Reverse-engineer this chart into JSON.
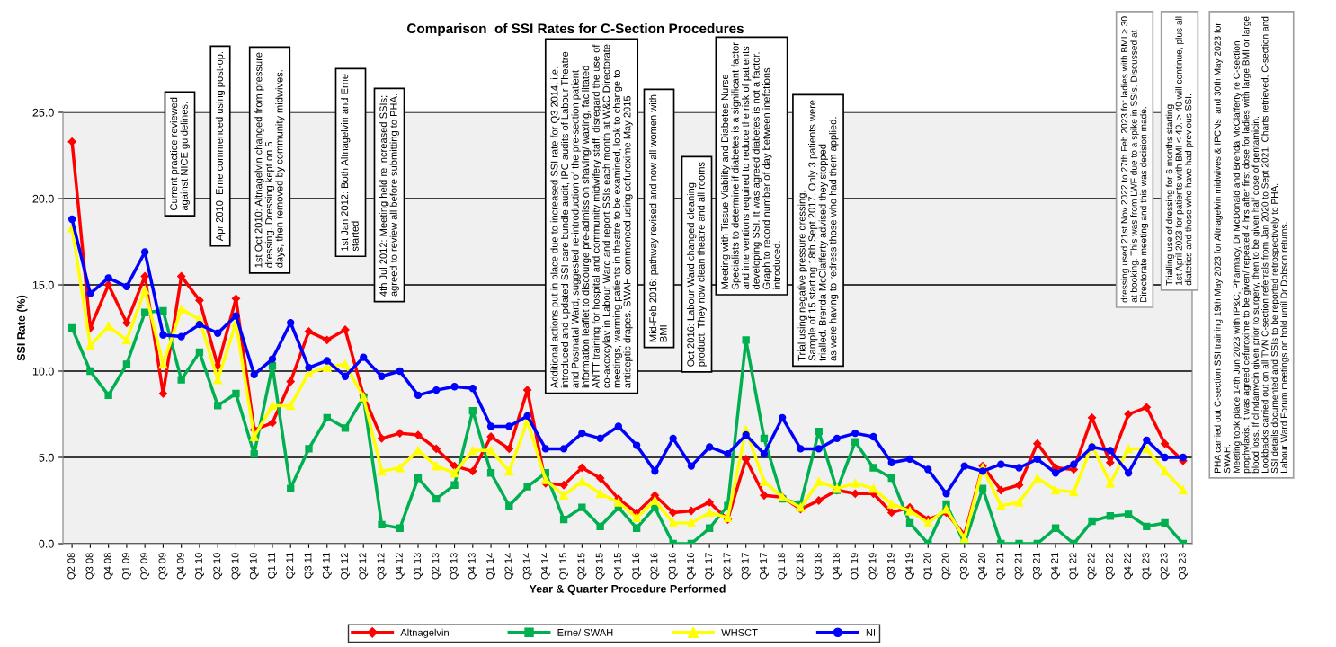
{
  "chart_data": {
    "type": "line",
    "title": "Comparison  of SSI Rates for C-Section Procedures",
    "xlabel": "Year & Quarter Procedure Performed",
    "ylabel": "SSI Rate (%)",
    "categories": [
      "Q2 08",
      "Q3 08",
      "Q4 08",
      "Q1 09",
      "Q2 09",
      "Q3 09",
      "Q4 09",
      "Q1 10",
      "Q2 10",
      "Q3 10",
      "Q4 10",
      "Q1 11",
      "Q2 11",
      "Q3 11",
      "Q4 11",
      "Q1 12",
      "Q2 12",
      "Q3 12",
      "Q4 12",
      "Q1 13",
      "Q2 13",
      "Q3 13",
      "Q4 13",
      "Q1 14",
      "Q2 14",
      "Q3 14",
      "Q4 14",
      "Q1 15",
      "Q2 15",
      "Q3 15",
      "Q4 15",
      "Q1 16",
      "Q2 16",
      "Q3 16",
      "Q4 16",
      "Q1 17",
      "Q2 17",
      "Q3 17",
      "Q4 17",
      "Q1 18",
      "Q2 18",
      "Q3 18",
      "Q4 18",
      "Q1 19",
      "Q2 19",
      "Q3 19",
      "Q4 19",
      "Q1 20",
      "Q2 20",
      "Q3 20",
      "Q4 20",
      "Q1 21",
      "Q2 21",
      "Q3 21",
      "Q4 21",
      "Q1 22",
      "Q2 22",
      "Q3 22",
      "Q4 22",
      "Q1 23",
      "Q2 23",
      "Q3 23"
    ],
    "series": [
      {
        "name": "Altnagelvin",
        "color": "#ff0000",
        "marker": "diamond",
        "values": [
          23.3,
          12.5,
          15.0,
          12.8,
          15.5,
          8.7,
          15.5,
          14.1,
          10.3,
          14.2,
          6.6,
          7.0,
          9.4,
          12.3,
          11.8,
          12.4,
          8.6,
          6.1,
          6.4,
          6.3,
          5.5,
          4.5,
          4.2,
          6.2,
          5.5,
          8.9,
          3.5,
          3.4,
          4.4,
          3.8,
          2.6,
          1.8,
          2.8,
          1.8,
          1.9,
          2.4,
          1.4,
          4.9,
          2.8,
          2.7,
          2.0,
          2.5,
          3.1,
          2.9,
          2.9,
          1.8,
          2.1,
          1.4,
          1.8,
          0.5,
          4.5,
          3.1,
          3.4,
          5.8,
          4.4,
          4.3,
          7.3,
          4.7,
          7.5,
          7.9,
          5.8,
          4.8
        ]
      },
      {
        "name": "Erne/ SWAH",
        "color": "#00b050",
        "marker": "square",
        "values": [
          12.5,
          10.0,
          8.6,
          10.4,
          13.4,
          13.5,
          9.5,
          11.1,
          8.0,
          8.7,
          5.2,
          10.3,
          3.2,
          5.5,
          7.3,
          6.7,
          8.5,
          1.1,
          0.9,
          3.8,
          2.6,
          3.4,
          7.7,
          4.1,
          2.2,
          3.3,
          4.1,
          1.4,
          2.1,
          1.0,
          2.1,
          0.9,
          2.1,
          0.0,
          0.0,
          0.9,
          2.2,
          11.8,
          6.1,
          2.6,
          2.3,
          6.5,
          3.1,
          5.9,
          4.4,
          3.8,
          1.2,
          0.0,
          2.3,
          0.0,
          3.2,
          0.0,
          0.0,
          0.0,
          0.9,
          0.0,
          1.3,
          1.6,
          1.7,
          1.0,
          1.2,
          0.0
        ]
      },
      {
        "name": "WHSCT",
        "color": "#ffff00",
        "marker": "triangle",
        "values": [
          18.3,
          11.5,
          12.6,
          11.8,
          14.7,
          10.4,
          13.6,
          13.0,
          9.5,
          12.8,
          6.2,
          8.0,
          8.0,
          9.9,
          10.2,
          10.4,
          8.5,
          4.2,
          4.4,
          5.4,
          4.5,
          4.1,
          5.4,
          5.4,
          4.2,
          7.1,
          3.7,
          2.8,
          3.6,
          2.9,
          2.4,
          1.5,
          2.5,
          1.2,
          1.2,
          1.8,
          1.5,
          6.6,
          3.6,
          2.7,
          2.1,
          3.6,
          3.2,
          3.5,
          3.2,
          2.3,
          1.9,
          1.2,
          2.0,
          0.3,
          4.4,
          2.2,
          2.4,
          3.8,
          3.1,
          3.0,
          5.7,
          3.5,
          5.5,
          5.5,
          4.2,
          3.1
        ]
      },
      {
        "name": "NI",
        "color": "#0000ff",
        "marker": "circle",
        "values": [
          18.8,
          14.5,
          15.4,
          14.9,
          16.9,
          12.1,
          12.0,
          12.7,
          12.2,
          13.2,
          9.8,
          10.7,
          12.8,
          10.2,
          10.6,
          9.7,
          10.8,
          9.7,
          10.0,
          8.6,
          8.9,
          9.1,
          9.0,
          6.8,
          6.8,
          7.4,
          5.5,
          5.5,
          6.4,
          6.1,
          6.8,
          5.7,
          4.2,
          6.1,
          4.5,
          5.6,
          5.2,
          6.3,
          5.2,
          7.3,
          5.5,
          5.5,
          6.1,
          6.4,
          6.2,
          4.7,
          4.9,
          4.3,
          2.9,
          4.5,
          4.2,
          4.6,
          4.4,
          4.9,
          4.1,
          4.6,
          5.6,
          5.4,
          4.1,
          6.0,
          5.0,
          5.0
        ]
      }
    ],
    "ylim": [
      0,
      25
    ],
    "yticks": [
      {
        "value": 0,
        "label": "0.0"
      },
      {
        "value": 5,
        "label": "5.0"
      },
      {
        "value": 10,
        "label": "10.0"
      },
      {
        "value": 15,
        "label": "15.0"
      },
      {
        "value": 20,
        "label": "20.0"
      },
      {
        "value": 25,
        "label": "25.0"
      }
    ],
    "grid": "y",
    "legend": "bottom",
    "line_style": "solid",
    "annotations": [
      "Current practice reviewed\nagainst NICE guidelines.",
      "Apr 2010: Erne commenced using post-op.",
      "1st Oct 2010: Altnagelvin changed from pressure\ndressing. Dressing kept on 5\ndays, then removed by community midwives.",
      "1st Jan 2012: Both Altnagelvin and Erne\nstarted",
      "4th Jul 2012: Meeting held re increased SSIs;\nagreed to review all before submitting to PHA.",
      "Additional actions put in place due to increased SSI rate for Q3 2014, i.e.\nintroduced and updated SSI care bundle audit, IPC audits of Labour Theatre\nand Postnatal Ward, suggested re-introduction of the pre-section patient\ninformation leaflet to discourge pre-admission shaving/ waxing, facilitated\nANTT training for hospital and community midwifery staff, disregard the use of\nco-axoxcylav in Labour Ward and report SSIs each month at W&C Directorate\nmeetings, warming patients in theatre to be examined, look to change to\nantiseptic drapes. SWAH commenced using cefuroxime May 2015",
      "Mid-Feb 2016: pathway revised and now all women with\nBMI",
      "Oct 2016: Labour Ward changed cleaning\nproduct. They now clean theatre and all rooms",
      "Meeting with Tissue Viability and Diabetes Nurse\nSpecialists to determine if diabetes is a significant factor\nand interventions required to reduce the risk of patients\ndeveloping SSI. It was agreed diabetes is not a factor.\nGraph to record number of day between inefctions\nintroduced.",
      "Trial using negative pressure dressing.\nSample of 15 starting 18th Sept 2017. Only 3 patients were\ntrialled. Brenda McClafferty advised they stopped\nas were having to redress those who had them applied.",
      "dressing used 21st Nov 2022 to 27th Feb 2023 for ladies with BMI ≥ 30\nat booking. This was from LWF due to a spike in SSIs. Discussed at\nDirectorate meeting and this was decision made.",
      "Trialling use of dressing for 6 months starting\n1st April 2023 for patients with BMI < 40. > 40 will continue, plus all\ndiatetics and those who have had previous SSI.",
      "PHA carried out C-section SSI training 19th May 2023 for Altnagelvin midwives & IPCNs  and 30th May 2023 for\nSWAH.\nMeeting took place 14th Jun 2023 with IP&C, Pharmacy, Dr McDonald and Brenda McClafferty re C-section\nprophylaxis. It was agreed cefuroxime to be given/ repeated 4 hrs after first dose for ladies with large BMI or large\nblood loss. If clindamycin given prior to surgery, then to be given half dose of gentamicin.\nLookbacks carried out on all TVN C-section referrals from Jan 2020 to Sept 2021. Charts retrieved, C-section and\nSSI details documented and SSIs to be reported retrospectively to PHA.\nLabour Ward Forum meetings on hold until Dr Dobson returns."
    ]
  }
}
